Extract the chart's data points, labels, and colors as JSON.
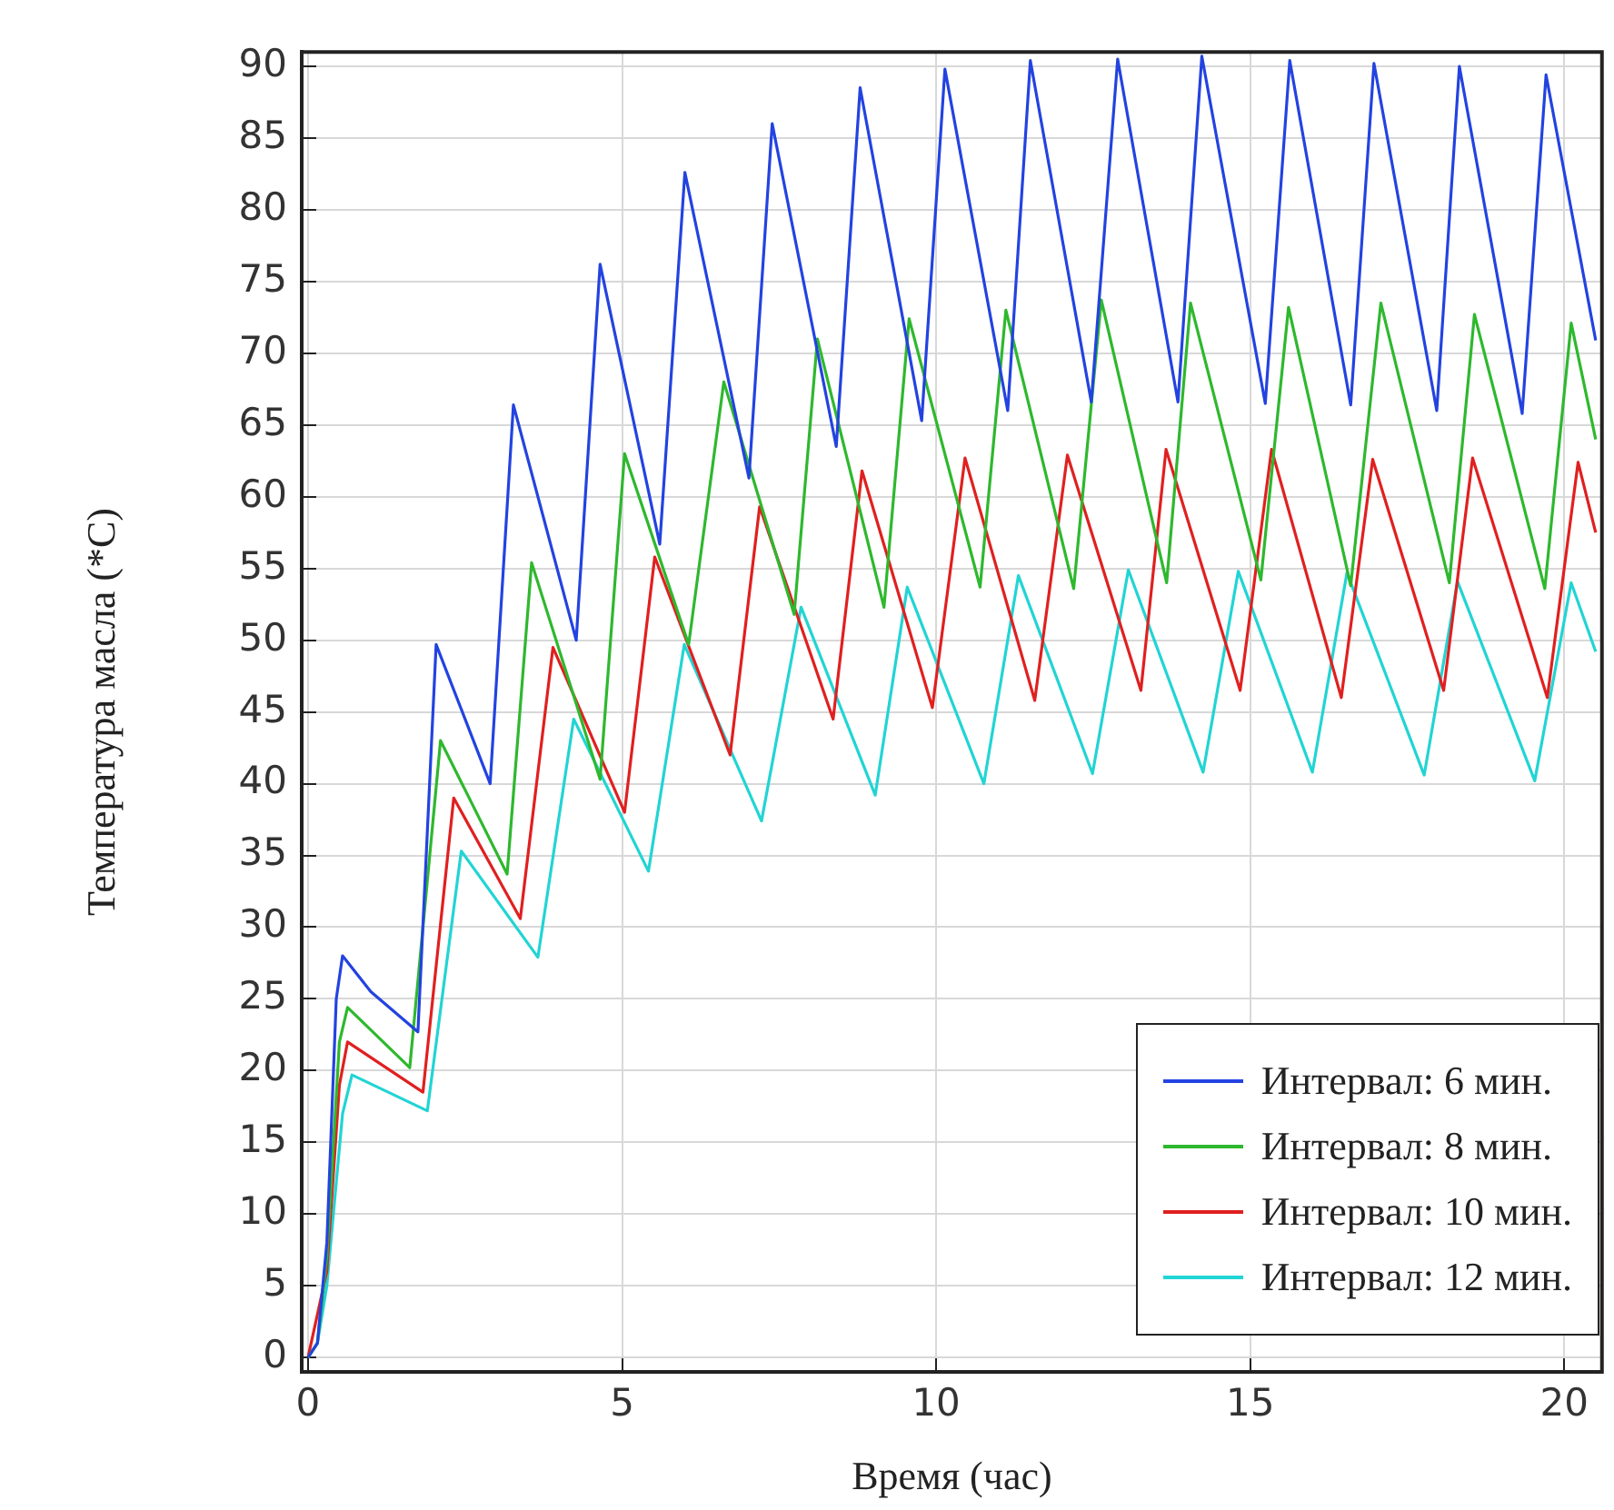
{
  "chart_data": {
    "type": "line",
    "xlabel": "Время (час)",
    "ylabel": "Температура масла (*C)",
    "xlim": [
      -0.1,
      20.6
    ],
    "ylim": [
      -1,
      91
    ],
    "xticks": [
      0,
      5,
      10,
      15,
      20
    ],
    "yticks": [
      0,
      5,
      10,
      15,
      20,
      25,
      30,
      35,
      40,
      45,
      50,
      55,
      60,
      65,
      70,
      75,
      80,
      85,
      90
    ],
    "grid": true,
    "legend": "bottom right",
    "marker": "none",
    "line_style": "solid",
    "series": [
      {
        "name": "Интервал: 6 мин.",
        "color": "#2343e0",
        "x": [
          0,
          0.15,
          0.3,
          0.45,
          0.55,
          1.0,
          1.75,
          2.04,
          2.9,
          3.27,
          4.27,
          4.65,
          5.6,
          6.0,
          7.02,
          7.39,
          8.41,
          8.79,
          9.77,
          10.14,
          11.14,
          11.5,
          12.47,
          12.89,
          13.85,
          14.23,
          15.24,
          15.63,
          16.6,
          16.97,
          17.97,
          18.33,
          19.33,
          19.71,
          20.5
        ],
        "values": [
          0,
          1,
          8,
          25,
          28,
          25.5,
          22.7,
          49.7,
          40,
          66.4,
          50,
          76.2,
          56.7,
          82.6,
          61.3,
          86,
          63.5,
          88.5,
          65.3,
          89.8,
          66,
          90.4,
          66.6,
          90.5,
          66.6,
          90.7,
          66.5,
          90.4,
          66.4,
          90.2,
          66,
          90,
          65.8,
          89.4,
          70.9
        ]
      },
      {
        "name": "Интервал: 8 мин.",
        "color": "#2eb82e",
        "x": [
          0,
          0.15,
          0.3,
          0.5,
          0.63,
          1.62,
          2.11,
          3.17,
          3.56,
          4.65,
          5.04,
          6.06,
          6.62,
          7.74,
          8.11,
          9.17,
          9.57,
          10.7,
          11.11,
          12.19,
          12.63,
          13.67,
          14.05,
          15.17,
          15.61,
          16.6,
          17.08,
          18.17,
          18.57,
          19.69,
          20.11,
          20.5
        ],
        "values": [
          0,
          1,
          7,
          22,
          24.4,
          20.2,
          43,
          33.7,
          55.4,
          40.3,
          63,
          49.7,
          68,
          51.8,
          71,
          52.3,
          72.4,
          53.7,
          73,
          53.6,
          73.7,
          54,
          73.5,
          54.2,
          73.2,
          53.8,
          73.5,
          54,
          72.7,
          53.6,
          72.1,
          64
        ]
      },
      {
        "name": "Интервал: 10 мин.",
        "color": "#e02020",
        "x": [
          0,
          0.3,
          0.5,
          0.63,
          1.83,
          2.32,
          3.38,
          3.9,
          5.04,
          5.52,
          6.72,
          7.19,
          8.36,
          8.82,
          9.94,
          10.46,
          11.57,
          12.09,
          13.26,
          13.66,
          14.84,
          15.34,
          16.45,
          16.95,
          18.08,
          18.54,
          19.73,
          20.22,
          20.5
        ],
        "values": [
          0,
          6,
          19,
          22,
          18.5,
          39,
          30.6,
          49.5,
          38,
          55.8,
          42,
          59.3,
          44.5,
          61.8,
          45.3,
          62.7,
          45.8,
          62.9,
          46.5,
          63.3,
          46.5,
          63.3,
          46,
          62.6,
          46.5,
          62.7,
          46,
          62.4,
          57.5
        ]
      },
      {
        "name": "Интервал: 12 мин.",
        "color": "#22d4d4",
        "x": [
          0,
          0.15,
          0.3,
          0.55,
          0.7,
          1.9,
          2.44,
          3.66,
          4.23,
          5.42,
          5.99,
          7.22,
          7.85,
          9.03,
          9.54,
          10.76,
          11.31,
          12.49,
          13.06,
          14.25,
          14.81,
          15.99,
          16.54,
          17.77,
          18.3,
          19.53,
          20.11,
          20.5
        ],
        "values": [
          0,
          1,
          5,
          17,
          19.7,
          17.2,
          35.3,
          27.9,
          44.5,
          33.9,
          49.7,
          37.4,
          52.3,
          39.2,
          53.7,
          40,
          54.5,
          40.7,
          54.9,
          40.8,
          54.8,
          40.8,
          54.7,
          40.6,
          54.1,
          40.2,
          54,
          49.2
        ]
      }
    ]
  }
}
